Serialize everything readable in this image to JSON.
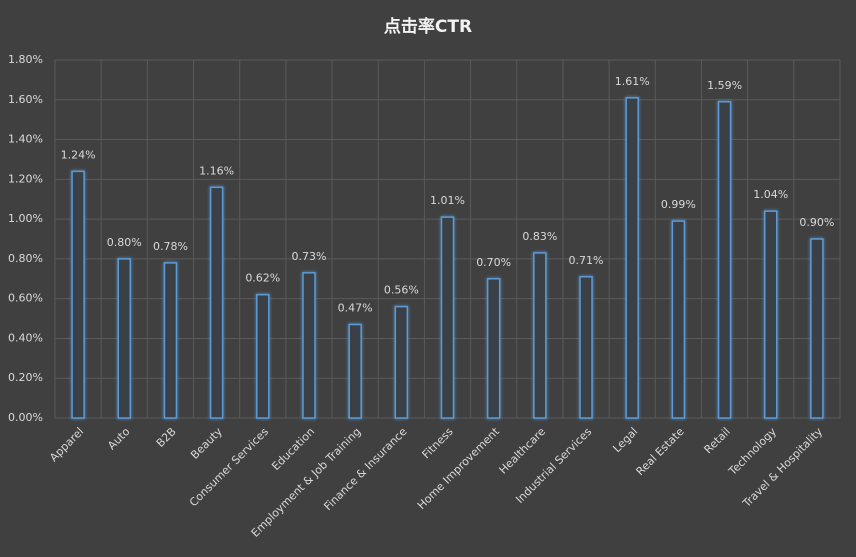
{
  "chart_data": {
    "type": "bar",
    "title": "点击率CTR",
    "categories": [
      "Apparel",
      "Auto",
      "B2B",
      "Beauty",
      "Consumer Services",
      "Education",
      "Employment & Job Training",
      "Finance & Insurance",
      "Fitness",
      "Home Improvement",
      "Healthcare",
      "Industrial Services",
      "Legal",
      "Real Estate",
      "Retail",
      "Technology",
      "Travel & Hospitality"
    ],
    "values": [
      1.24,
      0.8,
      0.78,
      1.16,
      0.62,
      0.73,
      0.47,
      0.56,
      1.01,
      0.7,
      0.83,
      0.71,
      1.61,
      0.99,
      1.59,
      1.04,
      0.9
    ],
    "value_labels": [
      "1.24%",
      "0.80%",
      "0.78%",
      "1.16%",
      "0.62%",
      "0.73%",
      "0.47%",
      "0.56%",
      "1.01%",
      "0.70%",
      "0.83%",
      "0.71%",
      "1.61%",
      "0.99%",
      "1.59%",
      "1.04%",
      "0.90%"
    ],
    "color": "#5b9bd5",
    "ylim": [
      0,
      1.8
    ],
    "yticks": [
      {
        "value": 0,
        "label": "0.00%"
      },
      {
        "value": 0.2,
        "label": "0.20%"
      },
      {
        "value": 0.4,
        "label": "0.40%"
      },
      {
        "value": 0.6,
        "label": "0.60%"
      },
      {
        "value": 0.8,
        "label": "0.80%"
      },
      {
        "value": 1.0,
        "label": "1.00%"
      },
      {
        "value": 1.2,
        "label": "1.20%"
      },
      {
        "value": 1.4,
        "label": "1.40%"
      },
      {
        "value": 1.6,
        "label": "1.60%"
      },
      {
        "value": 1.8,
        "label": "1.80%"
      }
    ],
    "grid": true
  }
}
